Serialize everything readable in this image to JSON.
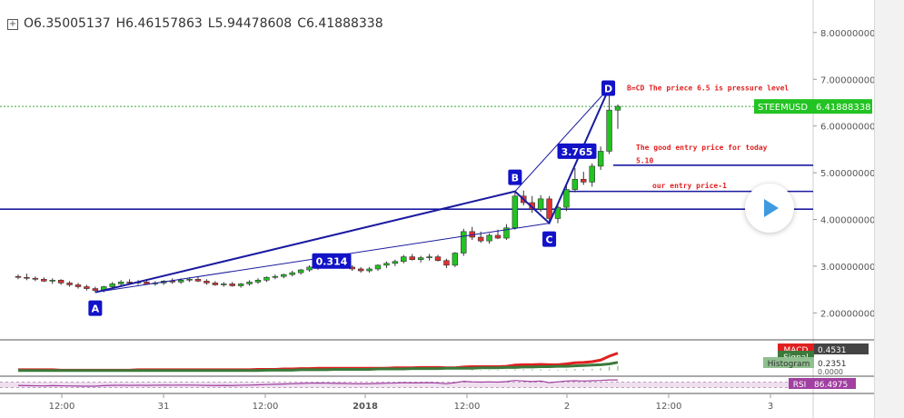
{
  "header": {
    "ohlc": [
      {
        "key": "open",
        "text": "O6.35005137"
      },
      {
        "key": "high",
        "text": "H6.46157863"
      },
      {
        "key": "low",
        "text": "L5.94478608"
      },
      {
        "key": "close",
        "text": "C6.41888338"
      }
    ]
  },
  "colors": {
    "up": "#22c322",
    "down": "#e03030",
    "trendline": "#1a1aa0",
    "price_line": "#3aa83a",
    "macd": "#e02020",
    "signal": "#3a7a3a",
    "histogram": "#90c090",
    "rsi": "#a040a0"
  },
  "chart_data": {
    "type": "candlestick",
    "title": "",
    "symbol": "STEEMUSD",
    "last_price": 6.41888338,
    "last_price_label": "6.41888338",
    "ylim": [
      1.5,
      8.6
    ],
    "y_ticks": [
      "2.00000000",
      "3.00000000",
      "4.00000000",
      "5.00000000",
      "6.00000000",
      "7.00000000",
      "8.00000000"
    ],
    "y_tick_values": [
      2,
      3,
      4,
      5,
      6,
      7,
      8
    ],
    "x_tick_labels": [
      "12:00",
      "31",
      "12:00",
      "2018",
      "12:00",
      "2",
      "12:00",
      "3"
    ],
    "x_tick_bold": [
      false,
      false,
      false,
      true,
      false,
      false,
      false,
      false
    ],
    "candles": [
      [
        2.78,
        2.82,
        2.72,
        2.76
      ],
      [
        2.76,
        2.84,
        2.7,
        2.74
      ],
      [
        2.74,
        2.78,
        2.68,
        2.72
      ],
      [
        2.72,
        2.76,
        2.66,
        2.68
      ],
      [
        2.68,
        2.74,
        2.62,
        2.7
      ],
      [
        2.7,
        2.72,
        2.6,
        2.64
      ],
      [
        2.64,
        2.68,
        2.56,
        2.6
      ],
      [
        2.6,
        2.64,
        2.52,
        2.56
      ],
      [
        2.56,
        2.6,
        2.48,
        2.52
      ],
      [
        2.52,
        2.56,
        2.44,
        2.48
      ],
      [
        2.48,
        2.58,
        2.44,
        2.56
      ],
      [
        2.56,
        2.66,
        2.52,
        2.62
      ],
      [
        2.62,
        2.7,
        2.58,
        2.66
      ],
      [
        2.66,
        2.72,
        2.62,
        2.64
      ],
      [
        2.64,
        2.7,
        2.6,
        2.66
      ],
      [
        2.66,
        2.72,
        2.6,
        2.62
      ],
      [
        2.62,
        2.68,
        2.58,
        2.64
      ],
      [
        2.64,
        2.7,
        2.6,
        2.68
      ],
      [
        2.68,
        2.74,
        2.62,
        2.66
      ],
      [
        2.66,
        2.74,
        2.62,
        2.7
      ],
      [
        2.7,
        2.76,
        2.66,
        2.72
      ],
      [
        2.72,
        2.78,
        2.66,
        2.68
      ],
      [
        2.68,
        2.72,
        2.6,
        2.64
      ],
      [
        2.64,
        2.68,
        2.58,
        2.6
      ],
      [
        2.6,
        2.66,
        2.56,
        2.62
      ],
      [
        2.62,
        2.66,
        2.56,
        2.58
      ],
      [
        2.58,
        2.64,
        2.54,
        2.62
      ],
      [
        2.62,
        2.7,
        2.58,
        2.66
      ],
      [
        2.66,
        2.74,
        2.62,
        2.7
      ],
      [
        2.7,
        2.78,
        2.66,
        2.76
      ],
      [
        2.76,
        2.82,
        2.72,
        2.78
      ],
      [
        2.78,
        2.84,
        2.74,
        2.82
      ],
      [
        2.82,
        2.9,
        2.78,
        2.86
      ],
      [
        2.86,
        2.94,
        2.82,
        2.92
      ],
      [
        2.92,
        3.02,
        2.88,
        2.98
      ],
      [
        2.98,
        3.06,
        2.92,
        3.04
      ],
      [
        3.04,
        3.1,
        2.98,
        3.02
      ],
      [
        3.02,
        3.08,
        2.96,
        3.0
      ],
      [
        3.0,
        3.06,
        2.94,
        2.98
      ],
      [
        2.98,
        3.02,
        2.9,
        2.94
      ],
      [
        2.94,
        2.98,
        2.86,
        2.9
      ],
      [
        2.9,
        2.98,
        2.86,
        2.94
      ],
      [
        2.94,
        3.04,
        2.9,
        3.02
      ],
      [
        3.02,
        3.1,
        2.96,
        3.06
      ],
      [
        3.06,
        3.14,
        3.0,
        3.1
      ],
      [
        3.1,
        3.24,
        3.06,
        3.2
      ],
      [
        3.2,
        3.26,
        3.12,
        3.14
      ],
      [
        3.14,
        3.22,
        3.08,
        3.18
      ],
      [
        3.18,
        3.26,
        3.12,
        3.2
      ],
      [
        3.2,
        3.24,
        3.1,
        3.12
      ],
      [
        3.12,
        3.16,
        2.96,
        3.02
      ],
      [
        3.02,
        3.3,
        2.98,
        3.28
      ],
      [
        3.28,
        3.8,
        3.22,
        3.74
      ],
      [
        3.74,
        3.84,
        3.56,
        3.62
      ],
      [
        3.62,
        3.74,
        3.5,
        3.54
      ],
      [
        3.54,
        3.7,
        3.48,
        3.66
      ],
      [
        3.66,
        3.78,
        3.58,
        3.6
      ],
      [
        3.6,
        3.9,
        3.56,
        3.82
      ],
      [
        3.82,
        4.6,
        3.78,
        4.5
      ],
      [
        4.5,
        4.62,
        4.3,
        4.36
      ],
      [
        4.36,
        4.5,
        4.14,
        4.22
      ],
      [
        4.22,
        4.52,
        4.16,
        4.44
      ],
      [
        4.44,
        4.5,
        3.96,
        4.02
      ],
      [
        4.02,
        4.3,
        3.92,
        4.26
      ],
      [
        4.26,
        4.72,
        4.18,
        4.64
      ],
      [
        4.64,
        5.1,
        4.58,
        4.86
      ],
      [
        4.86,
        5.02,
        4.74,
        4.8
      ],
      [
        4.8,
        5.2,
        4.7,
        5.14
      ],
      [
        5.14,
        5.56,
        5.06,
        5.46
      ],
      [
        5.46,
        6.82,
        5.4,
        6.34
      ],
      [
        6.34,
        6.46,
        5.94,
        6.42
      ]
    ],
    "ab_cd_points": [
      {
        "label": "A",
        "at": "swing low",
        "price": 2.44
      },
      {
        "label": "B",
        "at": "swing high",
        "price": 4.6
      },
      {
        "label": "C",
        "at": "swing low",
        "price": 3.92
      },
      {
        "label": "D",
        "at": "last high",
        "price": 6.82
      }
    ],
    "ratios": [
      {
        "text": "0.314",
        "where": "between A and B"
      },
      {
        "text": "3.765",
        "where": "between C and D"
      }
    ],
    "horizontal_levels": [
      {
        "price": 4.22,
        "text": ""
      },
      {
        "price": 4.6,
        "text": "our entry price-1"
      },
      {
        "price": 5.16,
        "text": "The good entry price for today"
      },
      {
        "price": 6.41888338,
        "text": ""
      }
    ],
    "annotations": [
      {
        "text": "B=CD The priece 6.5 is pressure level",
        "color": "#e02020"
      },
      {
        "text": "The good entry price for today",
        "color": "#e02020"
      },
      {
        "text": "5.10",
        "color": "#e02020"
      },
      {
        "text": "our entry price-1",
        "color": "#e02020"
      }
    ],
    "macd": {
      "labels": [
        {
          "text": "MACD",
          "value": "0.4531"
        },
        {
          "text": "Signal",
          "value": ""
        },
        {
          "text": "Histogram",
          "value": "0.2351"
        }
      ],
      "extra_value": "0.0000",
      "ylim": [
        -0.1,
        0.7
      ],
      "macd_series": [
        0.02,
        0.02,
        0.02,
        0.02,
        0.02,
        0.01,
        0.01,
        0.01,
        0.01,
        0.01,
        0.01,
        0.01,
        0.01,
        0.01,
        0.02,
        0.02,
        0.02,
        0.02,
        0.02,
        0.02,
        0.02,
        0.02,
        0.02,
        0.02,
        0.02,
        0.02,
        0.02,
        0.02,
        0.03,
        0.03,
        0.03,
        0.04,
        0.04,
        0.05,
        0.05,
        0.06,
        0.06,
        0.06,
        0.06,
        0.06,
        0.06,
        0.06,
        0.06,
        0.06,
        0.07,
        0.07,
        0.07,
        0.08,
        0.08,
        0.08,
        0.07,
        0.07,
        0.09,
        0.1,
        0.1,
        0.1,
        0.1,
        0.11,
        0.14,
        0.15,
        0.15,
        0.16,
        0.15,
        0.15,
        0.17,
        0.2,
        0.21,
        0.23,
        0.27,
        0.37,
        0.45
      ],
      "signal_series": [
        0.0,
        0.0,
        0.0,
        0.0,
        0.0,
        0.0,
        0.0,
        0.0,
        0.0,
        0.0,
        0.0,
        0.0,
        0.0,
        0.0,
        0.0,
        0.0,
        0.0,
        0.0,
        0.0,
        0.0,
        0.0,
        0.0,
        0.0,
        0.0,
        0.0,
        0.0,
        0.0,
        0.0,
        0.0,
        0.01,
        0.01,
        0.01,
        0.01,
        0.02,
        0.02,
        0.02,
        0.02,
        0.03,
        0.03,
        0.03,
        0.03,
        0.03,
        0.04,
        0.04,
        0.04,
        0.04,
        0.05,
        0.05,
        0.05,
        0.05,
        0.06,
        0.06,
        0.06,
        0.06,
        0.07,
        0.07,
        0.07,
        0.08,
        0.08,
        0.09,
        0.09,
        0.1,
        0.1,
        0.11,
        0.11,
        0.12,
        0.13,
        0.14,
        0.15,
        0.17,
        0.21
      ]
    },
    "rsi": {
      "label": "RSI",
      "value": "86.4975",
      "ylim": [
        0,
        100
      ],
      "series": [
        45,
        44,
        43,
        42,
        44,
        43,
        42,
        41,
        40,
        40,
        44,
        46,
        47,
        46,
        47,
        46,
        47,
        48,
        47,
        48,
        48,
        47,
        46,
        45,
        46,
        45,
        47,
        48,
        50,
        52,
        54,
        56,
        58,
        60,
        62,
        63,
        62,
        61,
        60,
        58,
        57,
        58,
        60,
        62,
        63,
        66,
        64,
        65,
        66,
        63,
        58,
        66,
        76,
        72,
        70,
        72,
        70,
        74,
        82,
        78,
        74,
        78,
        66,
        72,
        78,
        80,
        78,
        80,
        82,
        86,
        86
      ]
    }
  }
}
